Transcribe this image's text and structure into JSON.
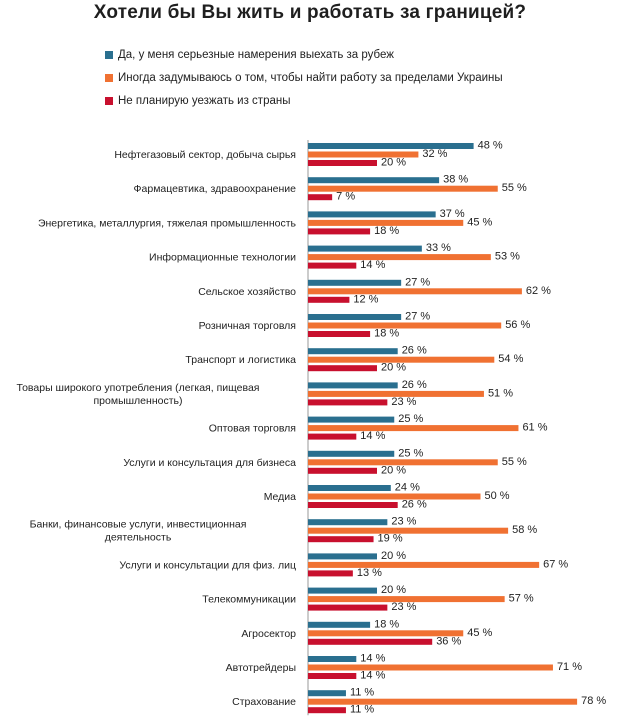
{
  "chart_data": {
    "type": "bar",
    "orientation": "horizontal",
    "title": "Хотели бы Вы жить и работать за границей?",
    "categories": [
      "Нефтегазовый сектор, добыча сырья",
      "Фармацевтика, здравоохранение",
      "Энергетика, металлургия, тяжелая промышленность",
      "Информационные технологии",
      "Сельское хозяйство",
      "Розничная торговля",
      "Транспорт и логистика",
      "Товары широкого употребления (легкая, пищевая промышленность)",
      "Оптовая торговля",
      "Услуги и консультация для бизнеса",
      "Медиа",
      "Банки, финансовые услуги, инвестиционная деятельность",
      "Услуги и консультации для физ. лиц",
      "Телекоммуникации",
      "Агросектор",
      "Автотрейдеры",
      "Страхование"
    ],
    "category_lines": [
      [
        "Нефтегазовый сектор, добыча сырья"
      ],
      [
        "Фармацевтика, здравоохранение"
      ],
      [
        "Энергетика, металлургия, тяжелая промышленность"
      ],
      [
        "Информационные технологии"
      ],
      [
        "Сельское хозяйство"
      ],
      [
        "Розничная торговля"
      ],
      [
        "Транспорт и логистика"
      ],
      [
        "Товары широкого употребления (легкая, пищевая",
        "промышленность)"
      ],
      [
        "Оптовая торговля"
      ],
      [
        "Услуги и консультация для бизнеса"
      ],
      [
        "Медиа"
      ],
      [
        "Банки, финансовые услуги, инвестиционная",
        "деятельность"
      ],
      [
        "Услуги и консультации для физ. лиц"
      ],
      [
        "Телекоммуникации"
      ],
      [
        "Агросектор"
      ],
      [
        "Автотрейдеры"
      ],
      [
        "Страхование"
      ]
    ],
    "value_suffix": " %",
    "series": [
      {
        "name": "Да, у меня серьезные намерения выехать за рубеж",
        "color": "#2a6f8f",
        "values": [
          48,
          38,
          37,
          33,
          27,
          27,
          26,
          26,
          25,
          25,
          24,
          23,
          20,
          20,
          18,
          14,
          11
        ]
      },
      {
        "name": "Иногда задумываюсь о том, чтобы найти работу за пределами Украины",
        "color": "#f07132",
        "values": [
          32,
          55,
          45,
          53,
          62,
          56,
          54,
          51,
          61,
          55,
          50,
          58,
          67,
          57,
          45,
          71,
          78
        ]
      },
      {
        "name": "Не планирую уезжать из страны",
        "color": "#c8102e",
        "values": [
          20,
          7,
          18,
          14,
          12,
          18,
          20,
          23,
          14,
          20,
          26,
          19,
          13,
          23,
          36,
          14,
          11
        ]
      }
    ],
    "xlim": [
      0,
      80
    ],
    "grid": false,
    "legend_position": "top-left"
  }
}
